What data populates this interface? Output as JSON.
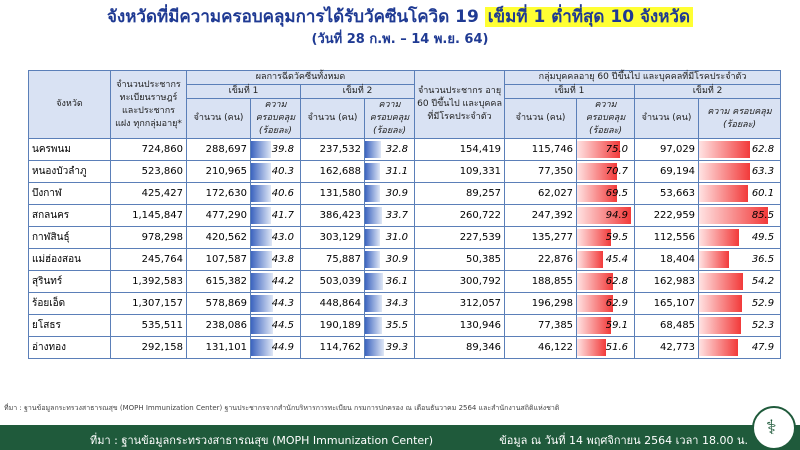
{
  "header": {
    "title_pre": "จังหวัดที่มีความครอบคลุมการได้รับวัคซีนโควิด 19",
    "title_highlight": "เข็มที่ 1 ต่ำที่สุด 10 จังหวัด",
    "subtitle": "(วันที่ 28 ก.พ. – 14 พ.ย. 64)"
  },
  "table": {
    "h_province": "จังหวัด",
    "h_pop": "จำนวนประชากร ทะเบียนราษฎร์ และประชากร แฝง ทุกกลุ่มอายุ*",
    "h_all": "ผลการฉีดวัคซีนทั้งหมด",
    "h_dose1": "เข็มที่ 1",
    "h_dose2": "เข็มที่ 2",
    "h_count": "จำนวน (คน)",
    "h_pct": "ความ ครอบคลุม (ร้อยละ)",
    "h_pop60": "จำนวนประชากร อายุ 60 ปีขึ้นไป และบุคคล ที่มีโรคประจำตัว",
    "h_group": "กลุ่มบุคคลอายุ 60 ปีขึ้นไป และบุคคลที่มีโรคประจำตัว",
    "rows": [
      {
        "name": "นครพนม",
        "pop": "724,860",
        "d1": "288,697",
        "d1p": "39.8",
        "d2": "237,532",
        "d2p": "32.8",
        "p60": "154,419",
        "g1": "115,746",
        "g1p": "75.0",
        "g2": "97,029",
        "g2p": "62.8"
      },
      {
        "name": "หนองบัวลำภู",
        "pop": "523,860",
        "d1": "210,965",
        "d1p": "40.3",
        "d2": "162,688",
        "d2p": "31.1",
        "p60": "109,331",
        "g1": "77,350",
        "g1p": "70.7",
        "g2": "69,194",
        "g2p": "63.3"
      },
      {
        "name": "บึงกาฬ",
        "pop": "425,427",
        "d1": "172,630",
        "d1p": "40.6",
        "d2": "131,580",
        "d2p": "30.9",
        "p60": "89,257",
        "g1": "62,027",
        "g1p": "69.5",
        "g2": "53,663",
        "g2p": "60.1"
      },
      {
        "name": "สกลนคร",
        "pop": "1,145,847",
        "d1": "477,290",
        "d1p": "41.7",
        "d2": "386,423",
        "d2p": "33.7",
        "p60": "260,722",
        "g1": "247,392",
        "g1p": "94.9",
        "g2": "222,959",
        "g2p": "85.5"
      },
      {
        "name": "กาฬสินธุ์",
        "pop": "978,298",
        "d1": "420,562",
        "d1p": "43.0",
        "d2": "303,129",
        "d2p": "31.0",
        "p60": "227,539",
        "g1": "135,277",
        "g1p": "59.5",
        "g2": "112,556",
        "g2p": "49.5"
      },
      {
        "name": "แม่ฮ่องสอน",
        "pop": "245,764",
        "d1": "107,587",
        "d1p": "43.8",
        "d2": "75,887",
        "d2p": "30.9",
        "p60": "50,385",
        "g1": "22,876",
        "g1p": "45.4",
        "g2": "18,404",
        "g2p": "36.5"
      },
      {
        "name": "สุรินทร์",
        "pop": "1,392,583",
        "d1": "615,382",
        "d1p": "44.2",
        "d2": "503,039",
        "d2p": "36.1",
        "p60": "300,792",
        "g1": "188,855",
        "g1p": "62.8",
        "g2": "162,983",
        "g2p": "54.2"
      },
      {
        "name": "ร้อยเอ็ด",
        "pop": "1,307,157",
        "d1": "578,869",
        "d1p": "44.3",
        "d2": "448,864",
        "d2p": "34.3",
        "p60": "312,057",
        "g1": "196,298",
        "g1p": "62.9",
        "g2": "165,107",
        "g2p": "52.9"
      },
      {
        "name": "ยโสธร",
        "pop": "535,511",
        "d1": "238,086",
        "d1p": "44.5",
        "d2": "190,189",
        "d2p": "35.5",
        "p60": "130,946",
        "g1": "77,385",
        "g1p": "59.1",
        "g2": "68,485",
        "g2p": "52.3"
      },
      {
        "name": "อ่างทอง",
        "pop": "292,158",
        "d1": "131,101",
        "d1p": "44.9",
        "d2": "114,762",
        "d2p": "39.3",
        "p60": "89,346",
        "g1": "46,122",
        "g1p": "51.6",
        "g2": "42,773",
        "g2p": "47.9"
      }
    ]
  },
  "footer": {
    "note_small": "ที่มา : ฐานข้อมูลกระทรวงสาธารณสุข (MOPH Immunization Center) ฐานประชากรจากสำนักบริหารการทะเบียน กรมการปกครอง ณ เดือนธันวาคม 2564 และสำนักงานสถิติแห่งชาติ",
    "source": "ที่มา : ฐานข้อมูลกระทรวงสาธารณสุข (MOPH  Immunization Center)",
    "date": "ข้อมูล ณ วันที่ 14 พฤศจิกายน 2564 เวลา 18.00 น.",
    "logo_icon": "moph-logo-icon"
  },
  "colors": {
    "title": "#1f3a93",
    "highlight": "#ffff33",
    "header_bg": "#d9e2f3",
    "blue_bar": "#3c64bf",
    "red_bar": "#f23a3a",
    "footer_bg": "#1f5a3b"
  }
}
